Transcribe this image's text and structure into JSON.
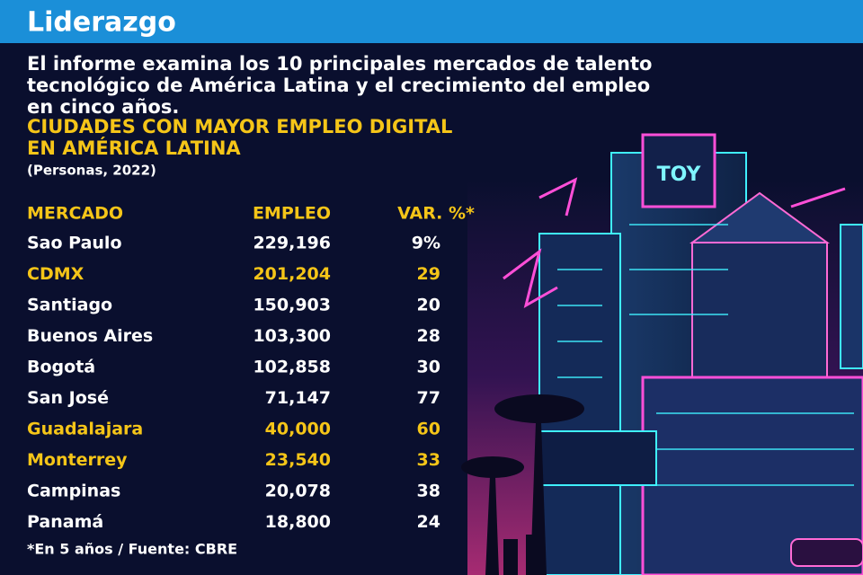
{
  "header": {
    "title": "Liderazgo"
  },
  "intro": [
    "El informe examina los 10 principales mercados de talento",
    "tecnológico de América Latina y el crecimiento del empleo",
    "en cinco años."
  ],
  "table": {
    "title": [
      "CIUDADES CON MAYOR EMPLEO DIGITAL",
      "EN AMÉRICA LATINA"
    ],
    "subtitle": "(Personas, 2022)",
    "columns": [
      "MERCADO",
      "EMPLEO",
      "VAR. %*"
    ],
    "highlight_color": "#f5c518",
    "rows": [
      {
        "cells": [
          "Sao Paulo",
          "229,196",
          "9%"
        ],
        "highlight": false
      },
      {
        "cells": [
          "CDMX",
          "201,204",
          "29"
        ],
        "highlight": true
      },
      {
        "cells": [
          "Santiago",
          "150,903",
          "20"
        ],
        "highlight": false
      },
      {
        "cells": [
          "Buenos Aires",
          "103,300",
          "28"
        ],
        "highlight": false
      },
      {
        "cells": [
          "Bogotá",
          "102,858",
          "30"
        ],
        "highlight": false
      },
      {
        "cells": [
          "San José",
          "71,147",
          "77"
        ],
        "highlight": false
      },
      {
        "cells": [
          "Guadalajara",
          "40,000",
          "60"
        ],
        "highlight": true
      },
      {
        "cells": [
          "Monterrey",
          "23,540",
          "33"
        ],
        "highlight": true
      },
      {
        "cells": [
          "Campinas",
          "20,078",
          "38"
        ],
        "highlight": false
      },
      {
        "cells": [
          "Panamá",
          "18,800",
          "24"
        ],
        "highlight": false
      }
    ],
    "note": "*En 5 años / Fuente: CBRE"
  }
}
